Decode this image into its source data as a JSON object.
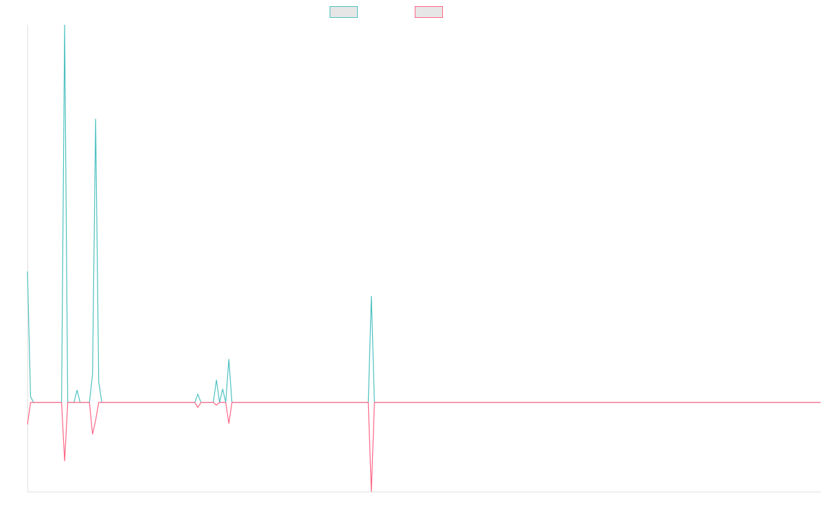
{
  "chart_data": {
    "type": "line",
    "x": [
      0,
      1,
      2,
      11,
      12,
      13,
      15,
      16,
      17,
      20,
      21,
      22,
      23,
      24,
      49,
      50,
      51,
      54,
      55,
      56,
      60,
      61,
      62,
      63,
      64,
      65,
      66,
      110,
      111,
      112,
      256
    ],
    "xlim": [
      0,
      256
    ],
    "ylim": [
      -23.6,
      100
    ],
    "series": [
      {
        "color": "#4bc0c0",
        "values": [
          34.7,
          1.5,
          0,
          0,
          100,
          0,
          0,
          3.3,
          0,
          0,
          7.5,
          75.1,
          5.5,
          0,
          0,
          0,
          0,
          0,
          2.2,
          0,
          0,
          6,
          0,
          3.6,
          0,
          11.5,
          0,
          0,
          28.2,
          0,
          0
        ]
      },
      {
        "color": "#ff6384",
        "values": [
          -5.8,
          0,
          0,
          0,
          -15.5,
          0,
          0,
          0,
          0,
          0,
          -8.4,
          -4.7,
          0,
          0,
          0,
          0,
          0,
          0,
          -1.3,
          0,
          0,
          -0.7,
          0,
          0,
          0,
          -5.6,
          0,
          0,
          -23.6,
          0,
          0
        ]
      }
    ]
  }
}
